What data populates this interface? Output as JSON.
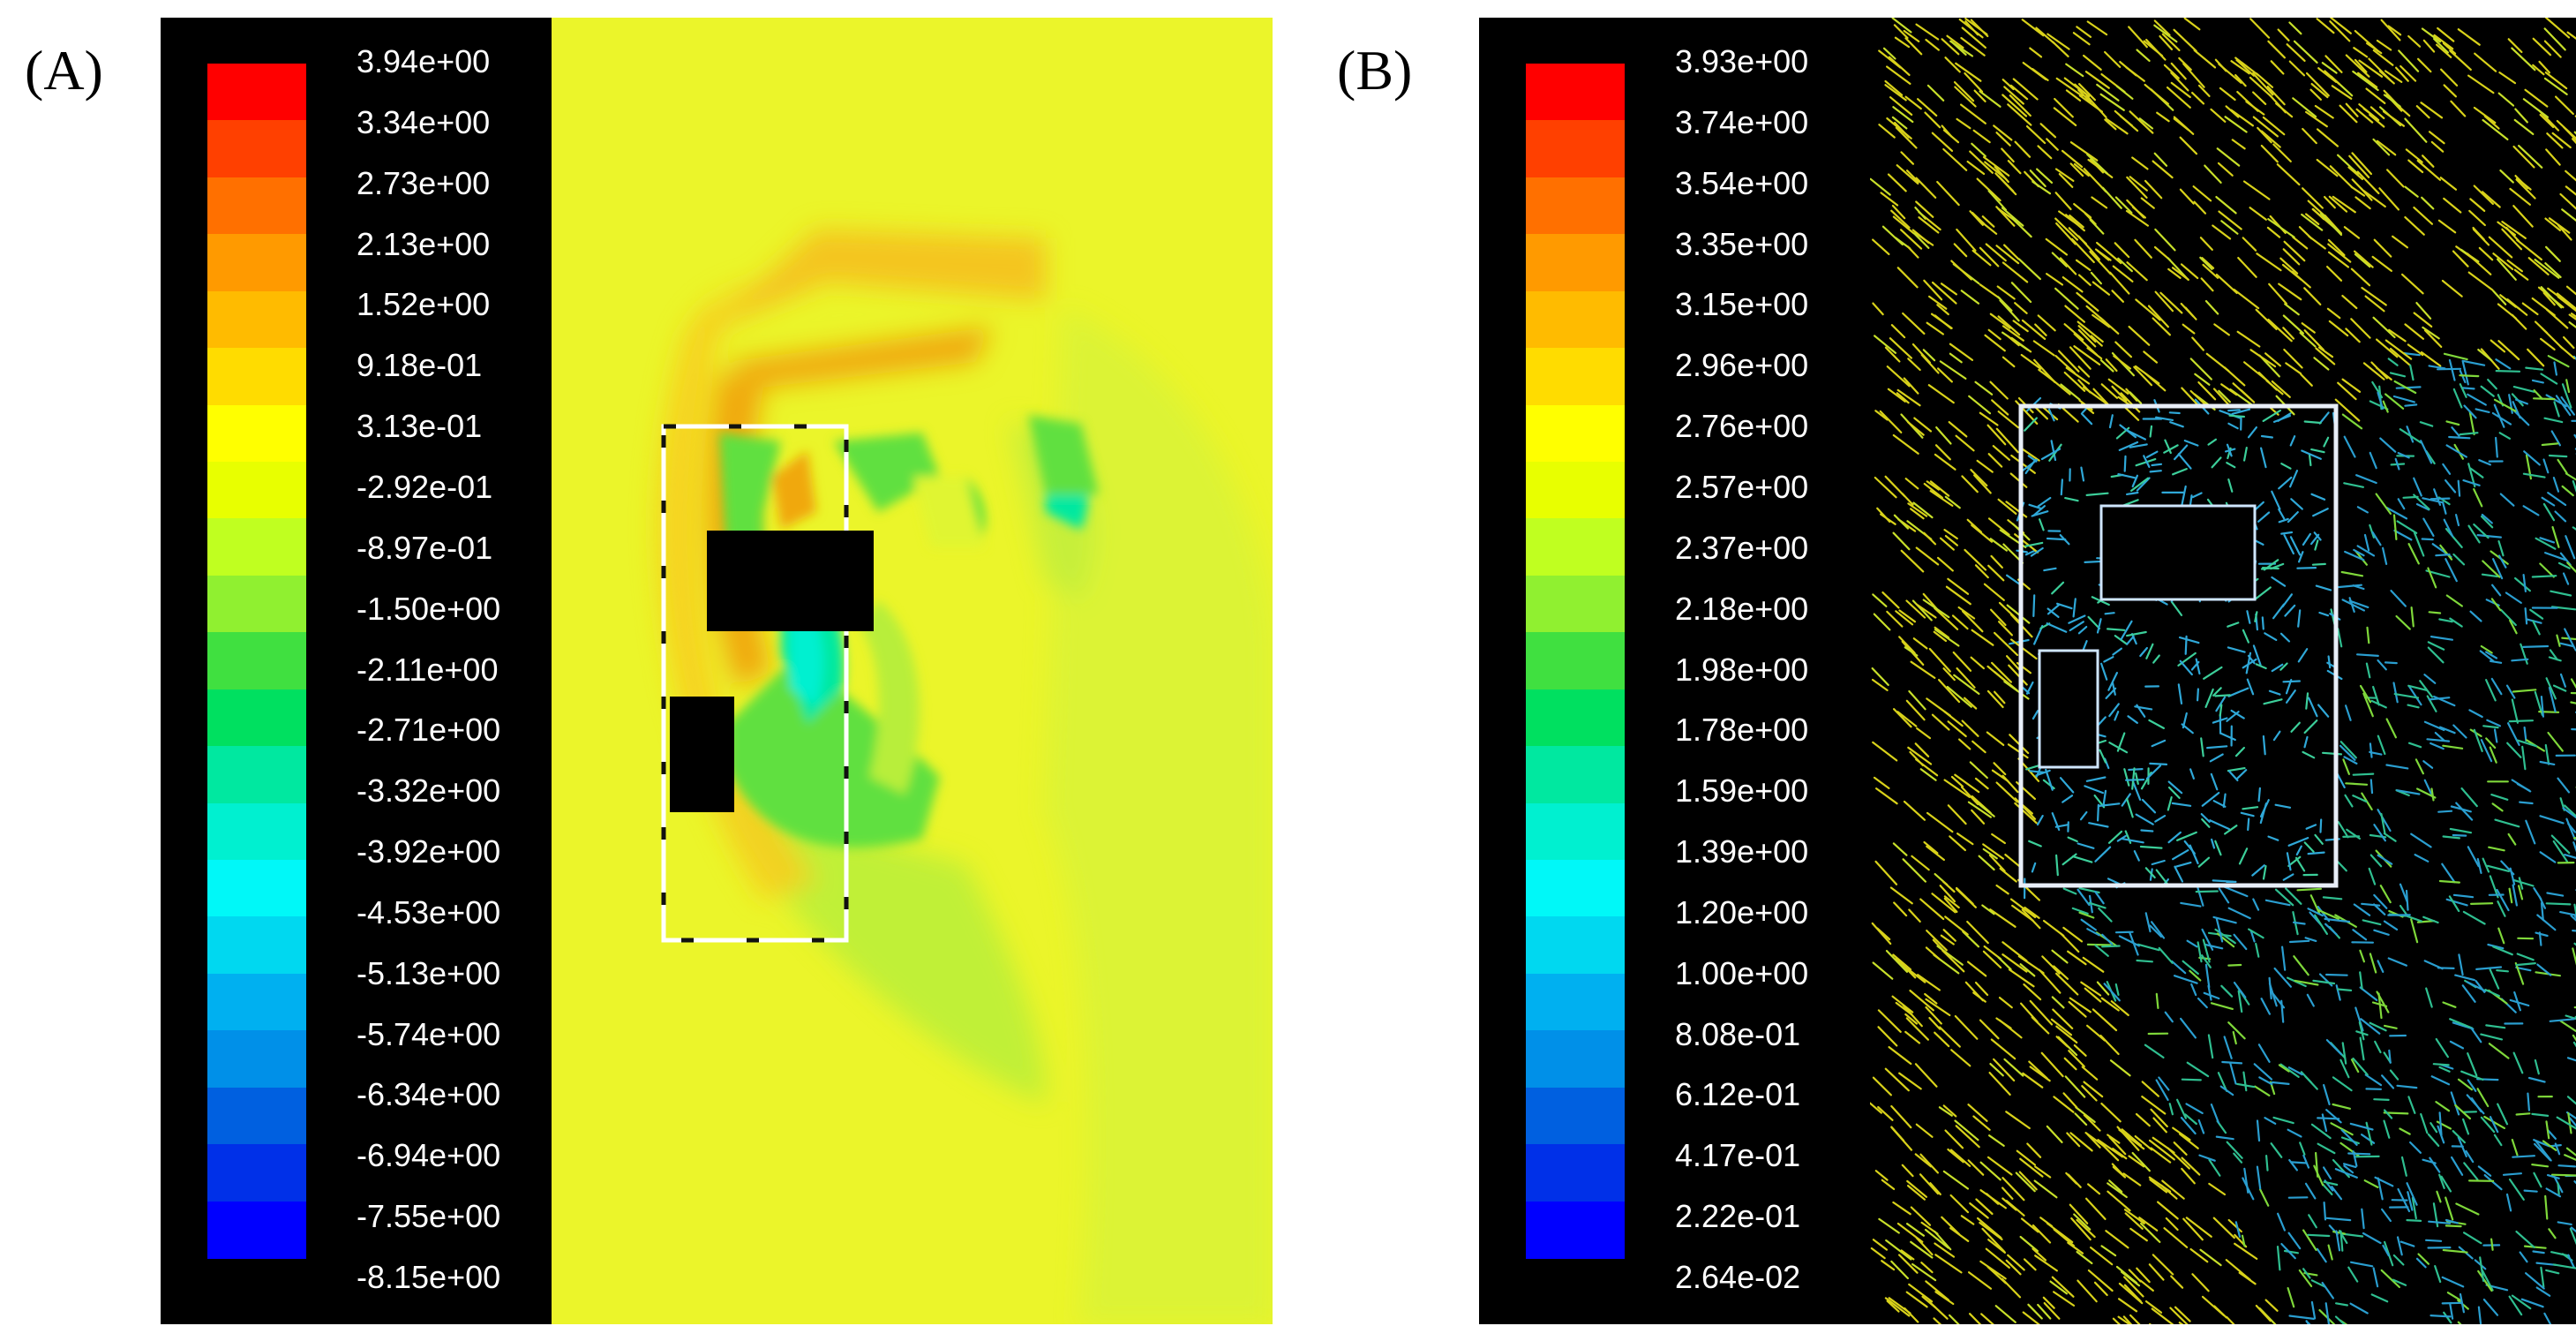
{
  "panel_a": {
    "label": "(A)",
    "scale": {
      "ticks": [
        "3.94e+00",
        "3.34e+00",
        "2.73e+00",
        "2.13e+00",
        "1.52e+00",
        "9.18e-01",
        "3.13e-01",
        "-2.92e-01",
        "-8.97e-01",
        "-1.50e+00",
        "-2.11e+00",
        "-2.71e+00",
        "-3.32e+00",
        "-3.92e+00",
        "-4.53e+00",
        "-5.13e+00",
        "-5.74e+00",
        "-6.34e+00",
        "-6.94e+00",
        "-7.55e+00",
        "-8.15e+00"
      ]
    }
  },
  "panel_b": {
    "label": "(B)",
    "scale": {
      "ticks": [
        "3.93e+00",
        "3.74e+00",
        "3.54e+00",
        "3.35e+00",
        "3.15e+00",
        "2.96e+00",
        "2.76e+00",
        "2.57e+00",
        "2.37e+00",
        "2.18e+00",
        "1.98e+00",
        "1.78e+00",
        "1.59e+00",
        "1.39e+00",
        "1.20e+00",
        "1.00e+00",
        "8.08e-01",
        "6.12e-01",
        "4.17e-01",
        "2.22e-01",
        "2.64e-02"
      ]
    }
  },
  "colors": {
    "scale_top_to_bottom": [
      "#ff0000",
      "#ff4000",
      "#ff7000",
      "#ff9a00",
      "#ffbb00",
      "#ffdc00",
      "#ffff00",
      "#e8ff00",
      "#c0ff20",
      "#90f030",
      "#40e040",
      "#00e060",
      "#00e8a0",
      "#00f0d0",
      "#00f8f8",
      "#00d8f0",
      "#00b0f0",
      "#0090e8",
      "#0060e0",
      "#0030e8",
      "#0000ff"
    ],
    "field_background": "#ebf52a",
    "legend_background": "#000000"
  }
}
